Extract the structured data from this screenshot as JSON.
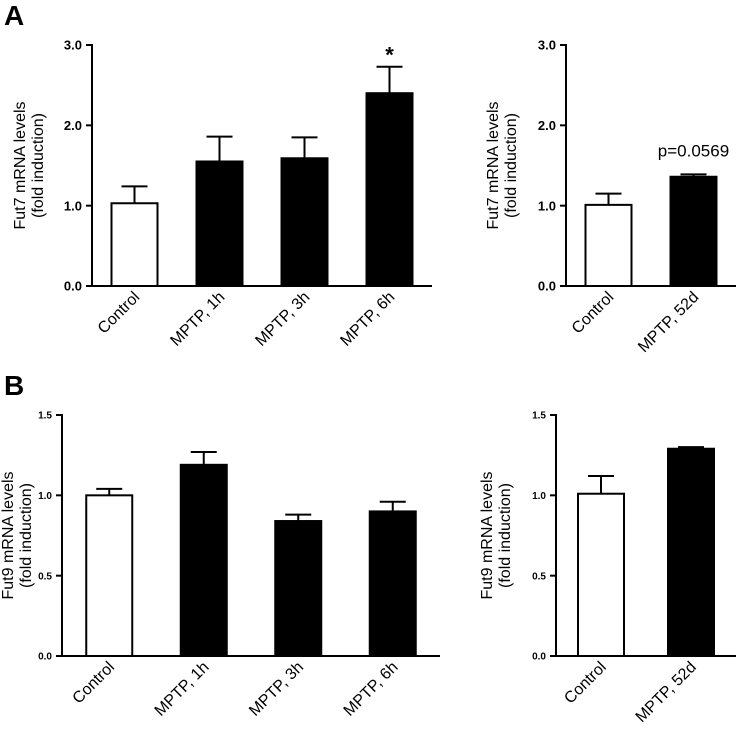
{
  "panels": [
    {
      "label": "A"
    },
    {
      "label": "B"
    }
  ],
  "colors": {
    "control_fill": "#ffffff",
    "treated_fill": "#000000",
    "axis": "#000000"
  },
  "chart_data": [
    {
      "type": "bar",
      "panel": "A",
      "categories": [
        "Control",
        "MPTP, 1h",
        "MPTP, 3h",
        "MPTP, 6h"
      ],
      "values": [
        1.03,
        1.55,
        1.59,
        2.4
      ],
      "errors": [
        0.21,
        0.31,
        0.26,
        0.33
      ],
      "fills": [
        "white",
        "black",
        "black",
        "black"
      ],
      "annotations": [
        "",
        "",
        "",
        "*"
      ],
      "ylabel": [
        "Fut7 mRNA levels",
        "(fold induction)"
      ],
      "ylim": [
        0,
        3.0
      ],
      "yticks": [
        0.0,
        1.0,
        2.0,
        3.0
      ],
      "ytick_labels": [
        "0.0",
        "1.0",
        "2.0",
        "3.0"
      ],
      "xlabel": ""
    },
    {
      "type": "bar",
      "panel": "A",
      "categories": [
        "Control",
        "MPTP, 52d"
      ],
      "values": [
        1.01,
        1.36
      ],
      "errors": [
        0.14,
        0.03
      ],
      "fills": [
        "white",
        "black"
      ],
      "annotations": [
        "",
        "p=0.0569"
      ],
      "ylabel": [
        "Fut7 mRNA levels",
        "(fold induction)"
      ],
      "ylim": [
        0,
        3.0
      ],
      "yticks": [
        0.0,
        1.0,
        2.0,
        3.0
      ],
      "ytick_labels": [
        "0.0",
        "1.0",
        "2.0",
        "3.0"
      ],
      "xlabel": ""
    },
    {
      "type": "bar",
      "panel": "B",
      "categories": [
        "Control",
        "MPTP, 1h",
        "MPTP, 3h",
        "MPTP, 6h"
      ],
      "values": [
        1.0,
        1.19,
        0.84,
        0.9
      ],
      "errors": [
        0.04,
        0.08,
        0.04,
        0.06
      ],
      "fills": [
        "white",
        "black",
        "black",
        "black"
      ],
      "annotations": [
        "",
        "",
        "",
        ""
      ],
      "ylabel": [
        "Fut9 mRNA levels",
        "(fold induction)"
      ],
      "ylim": [
        0,
        1.5
      ],
      "yticks": [
        0.0,
        0.5,
        1.0,
        1.5
      ],
      "ytick_labels": [
        "0.0",
        "0.5",
        "1.0",
        "1.5"
      ],
      "xlabel": ""
    },
    {
      "type": "bar",
      "panel": "B",
      "categories": [
        "Control",
        "MPTP, 52d"
      ],
      "values": [
        1.01,
        1.29
      ],
      "errors": [
        0.11,
        0.01
      ],
      "fills": [
        "white",
        "black"
      ],
      "annotations": [
        "",
        ""
      ],
      "ylabel": [
        "Fut9 mRNA levels",
        "(fold induction)"
      ],
      "ylim": [
        0,
        1.5
      ],
      "yticks": [
        0.0,
        0.5,
        1.0,
        1.5
      ],
      "ytick_labels": [
        "0.0",
        "0.5",
        "1.0",
        "1.5"
      ],
      "xlabel": ""
    }
  ]
}
